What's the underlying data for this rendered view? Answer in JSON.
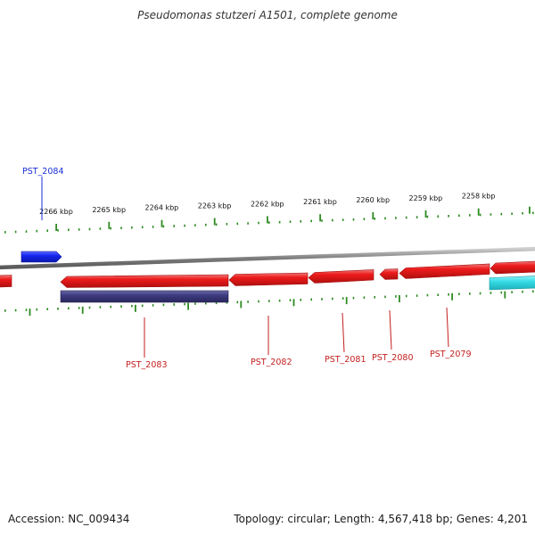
{
  "title": "Pseudomonas stutzeri A1501, complete genome",
  "footer": {
    "accession": "Accession: NC_009434",
    "summary": "Topology: circular; Length: 4,567,418 bp; Genes: 4,201"
  },
  "colors": {
    "backbone": "#8a8a8a",
    "tick": "#2e8b22",
    "forward_gene": "#1f2fe0",
    "reverse_gene": "#ea1c1c",
    "reverse_gene_label": "#c41e1e",
    "rna_feature": "#3d3a80",
    "forward_feature": "#38dde6",
    "forward_label": "#1a2fd6",
    "reverse_label_line": "#c41e1e"
  },
  "axis_ticks": [
    {
      "kbp": 2258,
      "label": "2258 kbp"
    },
    {
      "kbp": 2259,
      "label": "2259 kbp"
    },
    {
      "kbp": 2260,
      "label": "2260 kbp"
    },
    {
      "kbp": 2261,
      "label": "2261 kbp"
    },
    {
      "kbp": 2262,
      "label": "2262 kbp"
    },
    {
      "kbp": 2263,
      "label": "2263 kbp"
    },
    {
      "kbp": 2264,
      "label": "2264 kbp"
    },
    {
      "kbp": 2265,
      "label": "2265 kbp"
    },
    {
      "kbp": 2266,
      "label": "2266 kbp"
    }
  ],
  "genes": [
    {
      "name": "PST_2084",
      "strand": "forward",
      "labeled": true
    },
    {
      "name": "PST_2083",
      "strand": "reverse",
      "labeled": true
    },
    {
      "name": "PST_2082",
      "strand": "reverse",
      "labeled": true
    },
    {
      "name": "PST_2081",
      "strand": "reverse",
      "labeled": true
    },
    {
      "name": "PST_2080",
      "strand": "reverse",
      "labeled": true
    },
    {
      "name": "PST_2079",
      "strand": "reverse",
      "labeled": true
    }
  ]
}
